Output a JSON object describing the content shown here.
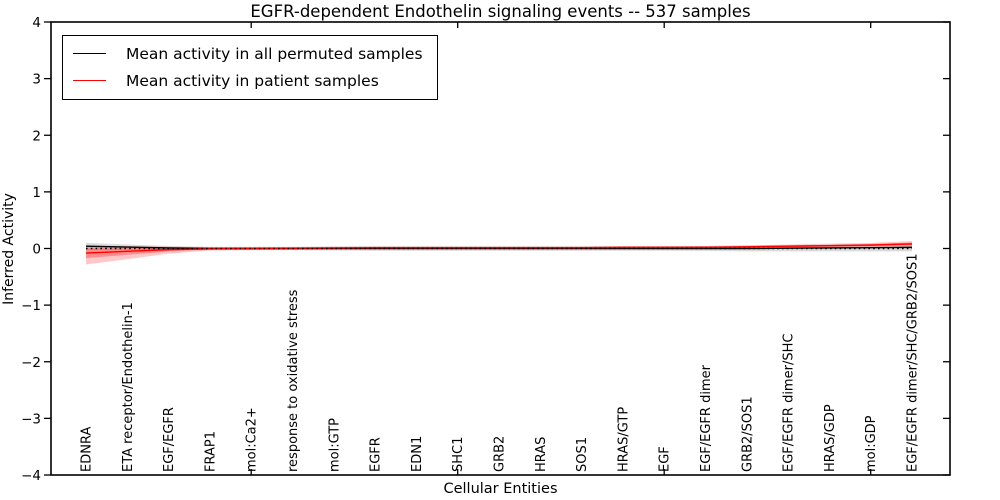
{
  "chart_data": {
    "type": "line",
    "title": "EGFR-dependent Endothelin signaling events -- 537 samples",
    "xlabel": "Cellular Entities",
    "ylabel": "Inferred Activity",
    "ylim": [
      -4,
      4
    ],
    "yticks": [
      4,
      3,
      2,
      1,
      0,
      -1,
      -2,
      -3,
      -4
    ],
    "ytick_labels": [
      "4",
      "3",
      "2",
      "1",
      "0",
      "−1",
      "−2",
      "−3",
      "−4"
    ],
    "xtick_mark_indices": [
      4,
      9,
      14,
      19
    ],
    "grid": false,
    "categories": [
      "EDNRA",
      "ETA receptor/Endothelin-1",
      "EGF/EGFR",
      "FRAP1",
      "mol:Ca2+",
      "response to oxidative stress",
      "mol:GTP",
      "EGFR",
      "EDN1",
      "SHC1",
      "GRB2",
      "HRAS",
      "SOS1",
      "HRAS/GTP",
      "EGF",
      "EGF/EGFR dimer",
      "GRB2/SOS1",
      "EGF/EGFR dimer/SHC",
      "HRAS/GDP",
      "mol:GDP",
      "EGF/EGFR dimer/SHC/GRB2/SOS1"
    ],
    "legend": {
      "position": "upper left",
      "entries": [
        {
          "label": "Mean activity in all permuted samples",
          "color": "#000000"
        },
        {
          "label": "Mean activity in patient samples",
          "color": "#ff0000"
        }
      ]
    },
    "series": [
      {
        "name": "Mean activity in all permuted samples",
        "color": "#000000",
        "values": [
          0.04,
          0.025,
          0.01,
          0.0,
          0.0,
          0.0,
          0.0,
          0.0,
          0.0,
          0.0,
          0.0,
          0.0,
          0.0,
          0.0,
          0.0,
          0.0,
          0.0,
          0.005,
          0.01,
          0.015,
          0.02
        ]
      },
      {
        "name": "Mean activity in patient samples",
        "color": "#ff0000",
        "values": [
          -0.08,
          -0.05,
          -0.02,
          -0.005,
          0.0,
          0.005,
          0.01,
          0.015,
          0.015,
          0.015,
          0.015,
          0.015,
          0.015,
          0.02,
          0.02,
          0.02,
          0.03,
          0.04,
          0.05,
          0.06,
          0.08
        ]
      }
    ],
    "bands": [
      {
        "name": "permuted-std-band",
        "color": "#999999",
        "opacity": 0.35,
        "upper": [
          0.1,
          0.07,
          0.045,
          0.03,
          0.03,
          0.03,
          0.035,
          0.04,
          0.04,
          0.04,
          0.04,
          0.04,
          0.04,
          0.04,
          0.04,
          0.045,
          0.05,
          0.055,
          0.065,
          0.075,
          0.09
        ],
        "lower": [
          -0.02,
          -0.02,
          -0.025,
          -0.03,
          -0.03,
          -0.03,
          -0.035,
          -0.04,
          -0.04,
          -0.04,
          -0.04,
          -0.04,
          -0.04,
          -0.04,
          -0.04,
          -0.045,
          -0.05,
          -0.05,
          -0.05,
          -0.05,
          -0.05
        ]
      },
      {
        "name": "patient-std-band-outer",
        "color": "#ff0000",
        "opacity": 0.22,
        "upper": [
          0.05,
          0.04,
          0.03,
          0.02,
          0.02,
          0.025,
          0.03,
          0.035,
          0.035,
          0.035,
          0.035,
          0.035,
          0.035,
          0.04,
          0.04,
          0.045,
          0.055,
          0.07,
          0.085,
          0.1,
          0.13
        ],
        "lower": [
          -0.28,
          -0.19,
          -0.09,
          -0.035,
          -0.025,
          -0.02,
          -0.015,
          -0.01,
          -0.01,
          -0.01,
          -0.01,
          -0.01,
          -0.01,
          -0.005,
          -0.005,
          0.0,
          0.0,
          0.005,
          0.015,
          0.025,
          0.035
        ]
      },
      {
        "name": "patient-std-band-inner",
        "color": "#ff0000",
        "opacity": 0.3,
        "upper": [
          0.0,
          0.005,
          0.01,
          0.01,
          0.01,
          0.015,
          0.02,
          0.025,
          0.025,
          0.025,
          0.025,
          0.025,
          0.025,
          0.03,
          0.03,
          0.03,
          0.04,
          0.055,
          0.065,
          0.08,
          0.105
        ],
        "lower": [
          -0.17,
          -0.11,
          -0.05,
          -0.02,
          -0.015,
          -0.01,
          -0.005,
          0.0,
          0.0,
          0.0,
          0.0,
          0.0,
          0.0,
          0.005,
          0.005,
          0.01,
          0.015,
          0.025,
          0.035,
          0.045,
          0.06
        ]
      }
    ],
    "zero_line": {
      "value": 0,
      "style": "dotted",
      "color": "#000000"
    }
  }
}
